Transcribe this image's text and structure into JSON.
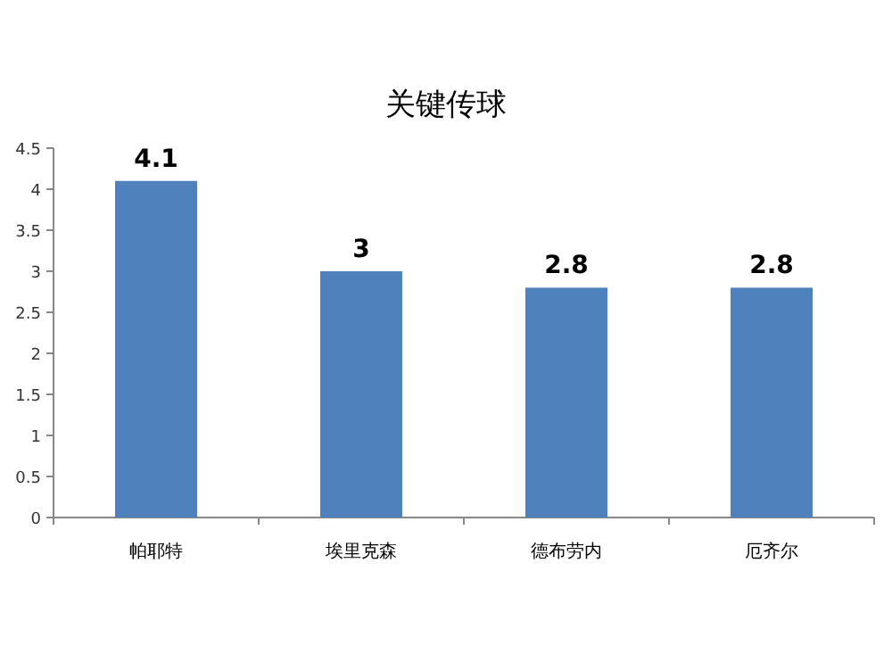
{
  "chart_data": {
    "type": "bar",
    "title": "关键传球",
    "categories": [
      "帕耶特",
      "埃里克森",
      "德布劳内",
      "厄齐尔"
    ],
    "values": [
      4.1,
      3,
      2.8,
      2.8
    ],
    "color": "#4f81bd",
    "ylim": [
      0,
      4.5
    ],
    "yticks": [
      0,
      0.5,
      1,
      1.5,
      2,
      2.5,
      3,
      3.5,
      4,
      4.5
    ],
    "data_labels": true,
    "grid": false
  }
}
